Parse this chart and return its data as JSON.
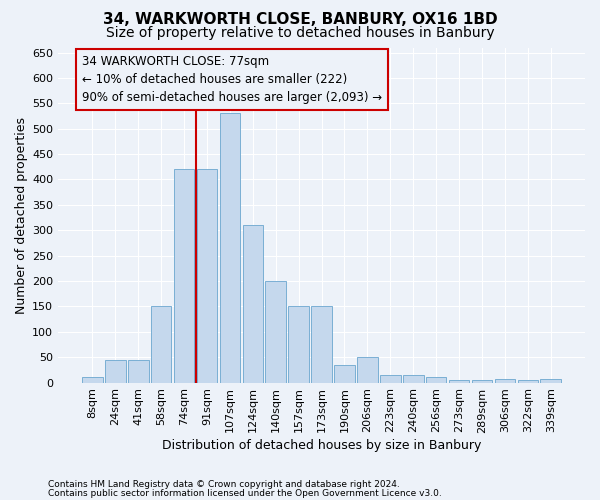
{
  "title": "34, WARKWORTH CLOSE, BANBURY, OX16 1BD",
  "subtitle": "Size of property relative to detached houses in Banbury",
  "xlabel": "Distribution of detached houses by size in Banbury",
  "ylabel": "Number of detached properties",
  "footer_line1": "Contains HM Land Registry data © Crown copyright and database right 2024.",
  "footer_line2": "Contains public sector information licensed under the Open Government Licence v3.0.",
  "categories": [
    "8sqm",
    "24sqm",
    "41sqm",
    "58sqm",
    "74sqm",
    "91sqm",
    "107sqm",
    "124sqm",
    "140sqm",
    "157sqm",
    "173sqm",
    "190sqm",
    "206sqm",
    "223sqm",
    "240sqm",
    "256sqm",
    "273sqm",
    "289sqm",
    "306sqm",
    "322sqm",
    "339sqm"
  ],
  "values": [
    10,
    45,
    45,
    150,
    420,
    420,
    530,
    310,
    200,
    150,
    150,
    35,
    50,
    15,
    15,
    10,
    5,
    5,
    8,
    5,
    8
  ],
  "bar_color": "#c5d8ed",
  "bar_edge_color": "#7aafd4",
  "ann_box_edge_color": "#cc0000",
  "ann_line1": "34 WARKWORTH CLOSE: 77sqm",
  "ann_line2": "← 10% of detached houses are smaller (222)",
  "ann_line3": "90% of semi-detached houses are larger (2,093) →",
  "vline_x": 4.5,
  "ylim": [
    0,
    660
  ],
  "yticks": [
    0,
    50,
    100,
    150,
    200,
    250,
    300,
    350,
    400,
    450,
    500,
    550,
    600,
    650
  ],
  "background_color": "#edf2f9",
  "grid_color": "#ffffff",
  "title_fontsize": 11,
  "subtitle_fontsize": 10,
  "ylabel_fontsize": 9,
  "xlabel_fontsize": 9,
  "tick_fontsize": 8,
  "ann_fontsize": 8.5,
  "footer_fontsize": 6.5
}
